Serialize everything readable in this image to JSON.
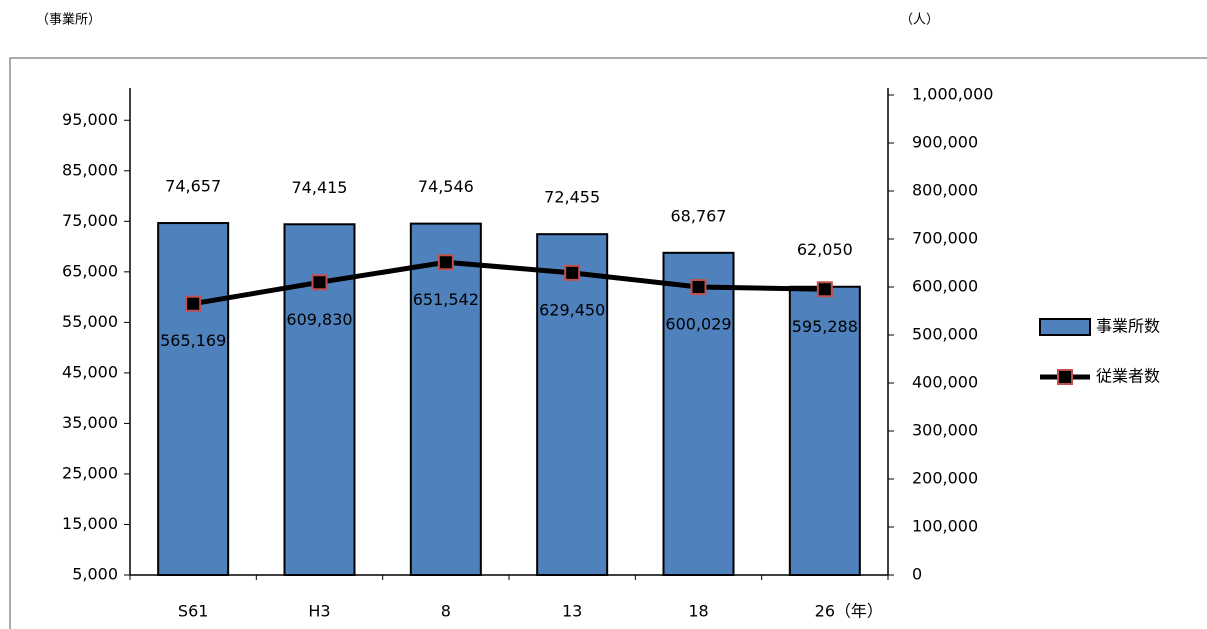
{
  "chart_data": {
    "type": "bar-line",
    "y_unit": "（事業所）",
    "y2_unit": "（人）",
    "x_unit": "（年）",
    "categories": [
      "S61",
      "H3",
      "8",
      "13",
      "18",
      "26"
    ],
    "series": [
      {
        "name": "事業所数",
        "type": "bar",
        "color": "#4f81bd",
        "values": [
          74657,
          74415,
          74546,
          72455,
          68767,
          62050
        ],
        "value_labels": [
          "74,657",
          "74,415",
          "74,546",
          "72,455",
          "68,767",
          "62,050"
        ]
      },
      {
        "name": "従業者数",
        "type": "line",
        "axis": "y2",
        "color": "#000000",
        "marker_edge": "#c0504d",
        "values": [
          565169,
          609830,
          651542,
          629450,
          600029,
          595288
        ],
        "value_labels": [
          "565,169",
          "609,830",
          "651,542",
          "629,450",
          "600,029",
          "595,288"
        ]
      }
    ],
    "ylim": [
      5000,
      100000
    ],
    "yticks": [
      {
        "value": 5000,
        "label": "5,000"
      },
      {
        "value": 15000,
        "label": "15,000"
      },
      {
        "value": 25000,
        "label": "25,000"
      },
      {
        "value": 35000,
        "label": "35,000"
      },
      {
        "value": 45000,
        "label": "45,000"
      },
      {
        "value": 55000,
        "label": "55,000"
      },
      {
        "value": 65000,
        "label": "65,000"
      },
      {
        "value": 75000,
        "label": "75,000"
      },
      {
        "value": 85000,
        "label": "85,000"
      },
      {
        "value": 95000,
        "label": "95,000"
      }
    ],
    "y2lim": [
      0,
      1000000
    ],
    "y2ticks": [
      0,
      {
        "value": 100000,
        "label": "100,000"
      },
      {
        "value": 200000,
        "label": "200,000"
      },
      {
        "value": 300000,
        "label": "300,000"
      },
      {
        "value": 400000,
        "label": "400,000"
      },
      {
        "value": 500000,
        "label": "500,000"
      },
      {
        "value": 600000,
        "label": "600,000"
      },
      {
        "value": 700000,
        "label": "700,000"
      },
      {
        "value": 800000,
        "label": "800,000"
      },
      {
        "value": 900000,
        "label": "900,000"
      },
      {
        "value": 1000000,
        "label": "1,000,000"
      }
    ],
    "legend": "right"
  }
}
